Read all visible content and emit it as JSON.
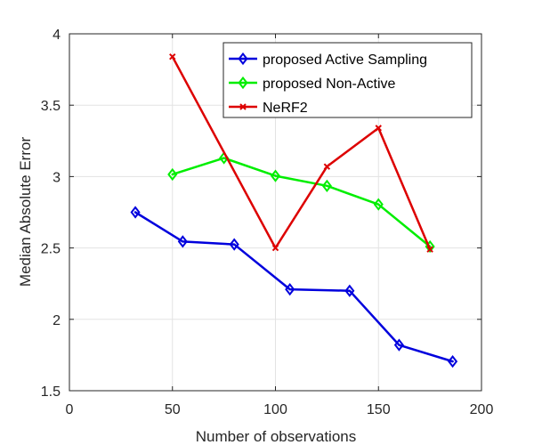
{
  "chart_data": {
    "type": "line",
    "title": "",
    "xlabel": "Number of observations",
    "ylabel": "Median Absolute Error",
    "xlim": [
      0,
      200
    ],
    "ylim": [
      1.5,
      4
    ],
    "xticks": [
      0,
      50,
      100,
      150,
      200
    ],
    "yticks": [
      1.5,
      2,
      2.5,
      3,
      3.5,
      4
    ],
    "xtick_labels": [
      "0",
      "50",
      "100",
      "150",
      "200"
    ],
    "ytick_labels": [
      "1.5",
      "2",
      "2.5",
      "3",
      "3.5",
      "4"
    ],
    "grid": true,
    "legend_position": "top-right",
    "series": [
      {
        "name": "proposed Active Sampling",
        "color": "#0000dd",
        "marker": "diamond",
        "x": [
          32,
          55,
          80,
          107,
          136,
          160,
          186
        ],
        "y": [
          2.75,
          2.545,
          2.525,
          2.21,
          2.2,
          1.82,
          1.705
        ]
      },
      {
        "name": "proposed Non-Active",
        "color": "#00ee00",
        "marker": "diamond",
        "x": [
          50,
          75,
          100,
          125,
          150,
          175
        ],
        "y": [
          3.015,
          3.13,
          3.005,
          2.935,
          2.805,
          2.51
        ]
      },
      {
        "name": "NeRF2",
        "color": "#dd0000",
        "marker": "x",
        "x": [
          50,
          100,
          125,
          150,
          175
        ],
        "y": [
          3.84,
          2.5,
          3.07,
          3.34,
          2.49
        ]
      }
    ]
  }
}
